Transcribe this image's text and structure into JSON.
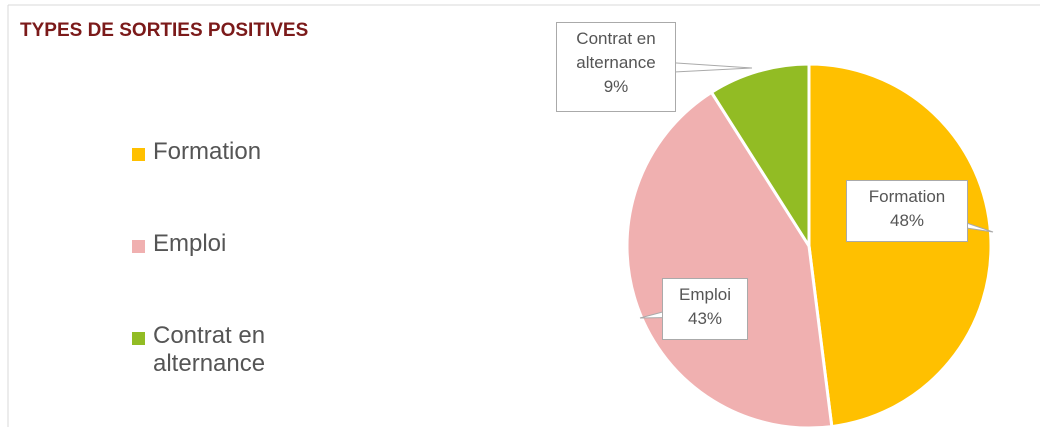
{
  "chart_data": {
    "type": "pie",
    "title": "TYPES DE SORTIES POSITIVES",
    "categories": [
      "Formation",
      "Emploi",
      "Contrat en alternance"
    ],
    "values": [
      48,
      43,
      9
    ],
    "value_labels": [
      "48%",
      "43%",
      "9%"
    ],
    "colors": [
      "#ffc000",
      "#f0b0b0",
      "#92bc24"
    ],
    "legend": "left"
  }
}
